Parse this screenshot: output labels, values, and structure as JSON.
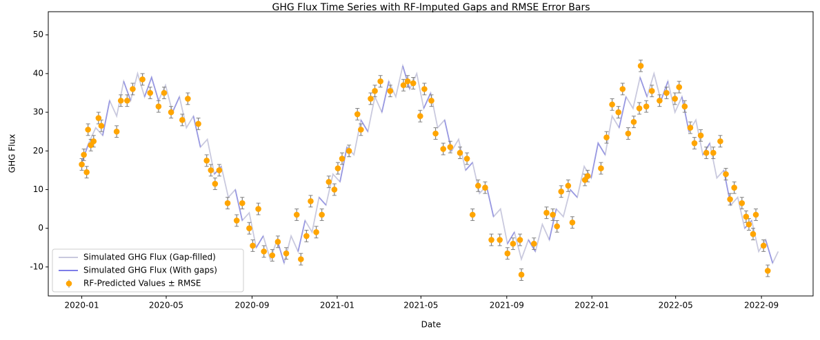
{
  "chart_data": {
    "type": "line",
    "title": "GHG Flux Time Series with RF-Imputed Gaps and RMSE Error Bars",
    "xlabel": "Date",
    "ylabel": "GHG Flux",
    "xlim": [
      "2019-11-14",
      "2022-11-14"
    ],
    "ylim": [
      -17.5,
      56
    ],
    "xticks": [
      {
        "value": "2020-01-01",
        "label": "2020-01"
      },
      {
        "value": "2020-05-01",
        "label": "2020-05"
      },
      {
        "value": "2020-09-01",
        "label": "2020-09"
      },
      {
        "value": "2021-01-01",
        "label": "2021-01"
      },
      {
        "value": "2021-05-01",
        "label": "2021-05"
      },
      {
        "value": "2021-09-01",
        "label": "2021-09"
      },
      {
        "value": "2022-01-01",
        "label": "2022-01"
      },
      {
        "value": "2022-05-01",
        "label": "2022-05"
      },
      {
        "value": "2022-09-01",
        "label": "2022-09"
      }
    ],
    "yticks": [
      -10,
      0,
      10,
      20,
      30,
      40,
      50
    ],
    "legend": "lower left",
    "x": [
      "2020-01-01",
      "2020-01-11",
      "2020-01-21",
      "2020-01-31",
      "2020-02-10",
      "2020-02-20",
      "2020-03-01",
      "2020-03-11",
      "2020-03-21",
      "2020-03-31",
      "2020-04-10",
      "2020-04-20",
      "2020-04-30",
      "2020-05-10",
      "2020-05-20",
      "2020-05-30",
      "2020-06-09",
      "2020-06-19",
      "2020-06-29",
      "2020-07-09",
      "2020-07-19",
      "2020-07-29",
      "2020-08-08",
      "2020-08-18",
      "2020-08-28",
      "2020-09-07",
      "2020-09-17",
      "2020-09-27",
      "2020-10-07",
      "2020-10-17",
      "2020-10-27",
      "2020-11-06",
      "2020-11-16",
      "2020-11-26",
      "2020-12-06",
      "2020-12-16",
      "2020-12-26",
      "2021-01-05",
      "2021-01-15",
      "2021-01-25",
      "2021-02-04",
      "2021-02-14",
      "2021-02-24",
      "2021-03-06",
      "2021-03-16",
      "2021-03-26",
      "2021-04-05",
      "2021-04-15",
      "2021-04-25",
      "2021-05-05",
      "2021-05-15",
      "2021-05-25",
      "2021-06-04",
      "2021-06-14",
      "2021-06-24",
      "2021-07-04",
      "2021-07-14",
      "2021-07-24",
      "2021-08-03",
      "2021-08-13",
      "2021-08-23",
      "2021-09-02",
      "2021-09-12",
      "2021-09-22",
      "2021-10-02",
      "2021-10-12",
      "2021-10-22",
      "2021-11-01",
      "2021-11-11",
      "2021-11-21",
      "2021-12-01",
      "2021-12-11",
      "2021-12-21",
      "2021-12-31",
      "2022-01-10",
      "2022-01-20",
      "2022-01-30",
      "2022-02-09",
      "2022-02-19",
      "2022-03-01",
      "2022-03-11",
      "2022-03-21",
      "2022-03-31",
      "2022-04-10",
      "2022-04-20",
      "2022-04-30",
      "2022-05-10",
      "2022-05-20",
      "2022-05-30",
      "2022-06-09",
      "2022-06-19",
      "2022-06-29",
      "2022-07-09",
      "2022-07-19",
      "2022-07-29",
      "2022-08-08",
      "2022-08-18",
      "2022-08-28",
      "2022-09-07",
      "2022-09-17",
      "2022-09-25"
    ],
    "series": [
      {
        "name": "Simulated GHG Flux (Gap-filled)",
        "color": "#c3c3da",
        "values": [
          17,
          22,
          26,
          24,
          33,
          29,
          38,
          33,
          40,
          34,
          39,
          33,
          37,
          30,
          34,
          26,
          29,
          21,
          23,
          14,
          16,
          8,
          10,
          2,
          4,
          -5,
          -2,
          -8,
          -3,
          -9,
          -2,
          -6,
          2,
          -1,
          8,
          6,
          14,
          12,
          21,
          19,
          28,
          25,
          34,
          30,
          38,
          34,
          42,
          36,
          40,
          31,
          35,
          26,
          28,
          20,
          23,
          15,
          17,
          9,
          11,
          3,
          5,
          -4,
          -1,
          -8,
          -3,
          -6,
          1,
          -3,
          5,
          3,
          10,
          8,
          16,
          13,
          22,
          19,
          29,
          26,
          34,
          31,
          39,
          34,
          40,
          33,
          38,
          30,
          34,
          25,
          28,
          19,
          22,
          13,
          15,
          6,
          8,
          0,
          2,
          -6,
          -3,
          -9,
          -6
        ]
      },
      {
        "name": "Simulated GHG Flux (With gaps)",
        "color": "#6f6fe6",
        "values": [
          17,
          22,
          null,
          24,
          33,
          null,
          38,
          33,
          null,
          34,
          39,
          33,
          null,
          30,
          34,
          null,
          29,
          21,
          null,
          14,
          16,
          null,
          10,
          2,
          null,
          -5,
          -2,
          null,
          -3,
          -9,
          null,
          -6,
          2,
          null,
          8,
          6,
          null,
          12,
          21,
          null,
          28,
          25,
          null,
          30,
          38,
          null,
          42,
          36,
          null,
          31,
          35,
          null,
          28,
          20,
          null,
          15,
          17,
          null,
          11,
          3,
          null,
          -4,
          -1,
          null,
          -3,
          -6,
          null,
          -3,
          5,
          null,
          10,
          8,
          null,
          13,
          22,
          19,
          null,
          26,
          34,
          null,
          39,
          34,
          null,
          33,
          38,
          null,
          34,
          25,
          null,
          19,
          22,
          null,
          15,
          6,
          null,
          0,
          2,
          null,
          -3,
          -9,
          null
        ]
      },
      {
        "name": "RF-Predicted Values ± RMSE",
        "type": "errorbar",
        "color": "#ffa500",
        "error_color": "#808080",
        "error": 1.5,
        "x": [
          "2020-01-01",
          "2020-01-04",
          "2020-01-08",
          "2020-01-10",
          "2020-01-14",
          "2020-01-18",
          "2020-01-25",
          "2020-01-29",
          "2020-02-20",
          "2020-02-26",
          "2020-03-06",
          "2020-03-14",
          "2020-03-28",
          "2020-04-08",
          "2020-04-20",
          "2020-04-28",
          "2020-05-08",
          "2020-05-24",
          "2020-06-01",
          "2020-06-16",
          "2020-06-28",
          "2020-07-04",
          "2020-07-10",
          "2020-07-16",
          "2020-07-28",
          "2020-08-10",
          "2020-08-18",
          "2020-08-28",
          "2020-09-02",
          "2020-09-10",
          "2020-09-18",
          "2020-09-30",
          "2020-10-08",
          "2020-10-20",
          "2020-11-04",
          "2020-11-10",
          "2020-11-18",
          "2020-11-24",
          "2020-12-02",
          "2020-12-10",
          "2020-12-20",
          "2020-12-28",
          "2021-01-02",
          "2021-01-08",
          "2021-01-18",
          "2021-01-30",
          "2021-02-04",
          "2021-02-18",
          "2021-02-24",
          "2021-03-04",
          "2021-03-18",
          "2021-04-06",
          "2021-04-12",
          "2021-04-20",
          "2021-04-30",
          "2021-05-06",
          "2021-05-16",
          "2021-05-22",
          "2021-06-02",
          "2021-06-12",
          "2021-06-26",
          "2021-07-06",
          "2021-07-14",
          "2021-07-22",
          "2021-08-01",
          "2021-08-10",
          "2021-08-22",
          "2021-09-02",
          "2021-09-10",
          "2021-09-20",
          "2021-09-22",
          "2021-10-10",
          "2021-10-28",
          "2021-11-06",
          "2021-11-12",
          "2021-11-18",
          "2021-11-28",
          "2021-12-04",
          "2021-12-22",
          "2021-12-26",
          "2022-01-14",
          "2022-01-22",
          "2022-01-30",
          "2022-02-08",
          "2022-02-14",
          "2022-02-22",
          "2022-03-02",
          "2022-03-10",
          "2022-03-12",
          "2022-03-20",
          "2022-03-28",
          "2022-04-08",
          "2022-04-18",
          "2022-04-30",
          "2022-05-06",
          "2022-05-14",
          "2022-05-22",
          "2022-05-28",
          "2022-06-06",
          "2022-06-14",
          "2022-06-24",
          "2022-07-04",
          "2022-07-12",
          "2022-07-18",
          "2022-07-24",
          "2022-08-04",
          "2022-08-10",
          "2022-08-14",
          "2022-08-20",
          "2022-08-24",
          "2022-09-04",
          "2022-09-10"
        ],
        "values": [
          16.5,
          19,
          14.5,
          25.5,
          21.5,
          22.5,
          28.5,
          26.5,
          25,
          33,
          33,
          36,
          38.5,
          35,
          31.5,
          35,
          30,
          28,
          33.5,
          27,
          17.5,
          15,
          11.5,
          15,
          6.5,
          2,
          6.5,
          0,
          -4.5,
          5,
          -6,
          -7,
          -3.5,
          -6.5,
          3.5,
          -8,
          -2,
          7,
          -1,
          3.5,
          12,
          10,
          15.5,
          18,
          20,
          29.5,
          25.5,
          33.5,
          35.5,
          38,
          35.5,
          37,
          38,
          37.5,
          29,
          36,
          33,
          24.5,
          20.5,
          21,
          19.5,
          18,
          3.5,
          11,
          10.5,
          -3,
          -3,
          -6.5,
          -4,
          -3,
          -12,
          -4,
          4,
          3.5,
          0.5,
          9.5,
          11,
          1.5,
          12.5,
          13.5,
          15.5,
          23.5,
          32,
          30,
          36,
          24.5,
          27.5,
          31,
          42,
          31.5,
          35.5,
          33,
          35,
          33.5,
          36.5,
          31.5,
          26,
          22,
          24,
          19.5,
          19.5,
          22.5,
          14,
          7.5,
          10.5,
          6.5,
          3,
          1,
          -1.5,
          3.5,
          -4.5,
          -11
        ]
      }
    ]
  }
}
